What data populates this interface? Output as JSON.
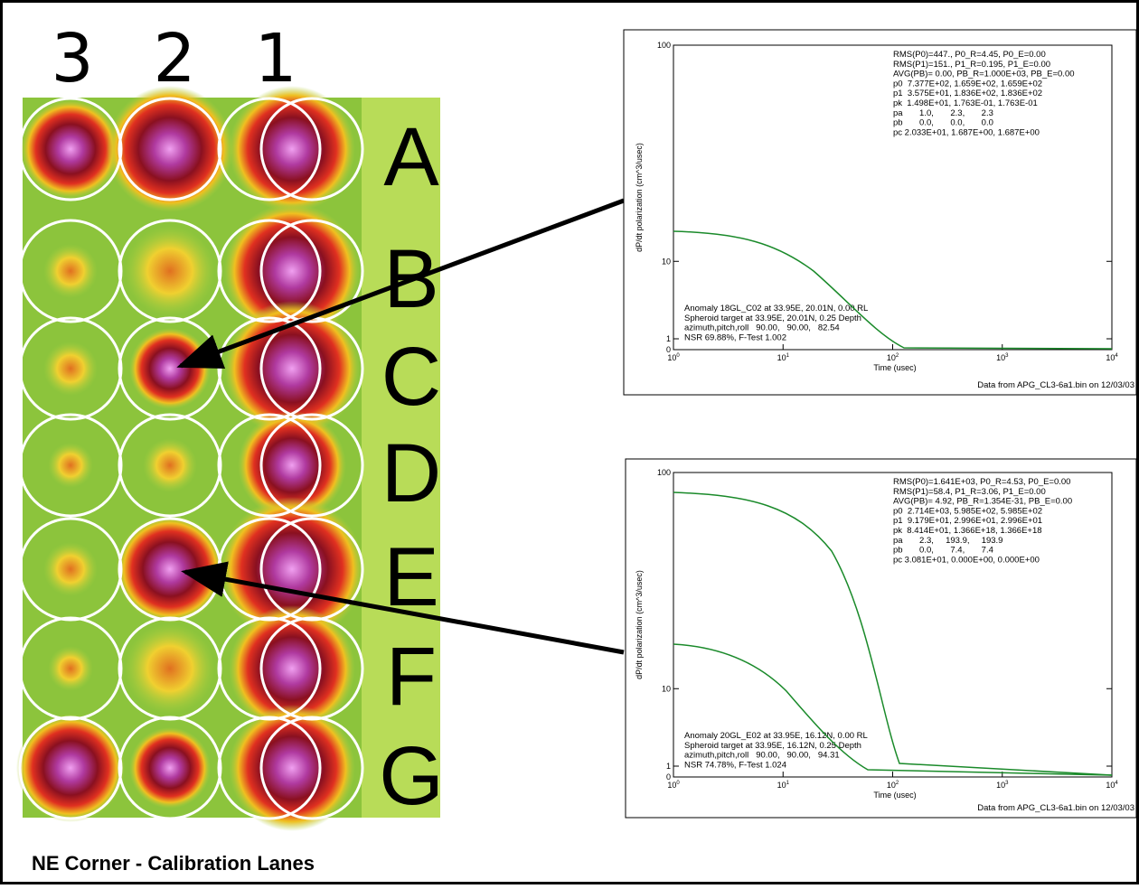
{
  "heatmap": {
    "column_labels": [
      "3",
      "2",
      "1"
    ],
    "row_labels": [
      "A",
      "B",
      "C",
      "D",
      "E",
      "F",
      "G"
    ]
  },
  "plots": [
    {
      "y_label": "dP/dt polarization (cm^3/usec)",
      "x_label": "Time (usec)",
      "y_tick_labels": [
        "100",
        "10",
        "1",
        "0"
      ],
      "x_tick_labels": [
        {
          "base": "10",
          "exp": "0"
        },
        {
          "base": "10",
          "exp": "1"
        },
        {
          "base": "10",
          "exp": "2"
        },
        {
          "base": "10",
          "exp": "3"
        },
        {
          "base": "10",
          "exp": "4"
        }
      ],
      "fit_lines": [
        "RMS(P0)=447., P0_R=4.45, P0_E=0.00",
        "RMS(P1)=151., P1_R=0.195, P1_E=0.00",
        "AVG(PB)= 0.00, PB_R=1.000E+03, PB_E=0.00",
        "p0  7.377E+02, 1.659E+02, 1.659E+02",
        "p1  3.575E+01, 1.836E+02, 1.836E+02",
        "pk  1.498E+01, 1.763E-01, 1.763E-01",
        "pa       1.0,       2.3,       2.3",
        "pb       0.0,       0.0,       0.0",
        "pc 2.033E+01, 1.687E+00, 1.687E+00"
      ],
      "anomaly_lines": [
        "Anomaly 18GL_C02 at 33.95E, 20.01N, 0.00 RL",
        "Spheroid target at 33.95E, 20.01N, 0.25 Depth",
        "azimuth,pitch,roll   90.00,   90.00,   82.54",
        "NSR 69.88%, F-Test 1.002"
      ],
      "source": "Data from APG_CL3-6a1.bin on 12/03/03"
    },
    {
      "y_label": "dP/dt polarization (cm^3/usec)",
      "x_label": "Time (usec)",
      "y_tick_labels": [
        "100",
        "10",
        "1",
        "0"
      ],
      "x_tick_labels": [
        {
          "base": "10",
          "exp": "0"
        },
        {
          "base": "10",
          "exp": "1"
        },
        {
          "base": "10",
          "exp": "2"
        },
        {
          "base": "10",
          "exp": "3"
        },
        {
          "base": "10",
          "exp": "4"
        }
      ],
      "fit_lines": [
        "RMS(P0)=1.641E+03, P0_R=4.53, P0_E=0.00",
        "RMS(P1)=58.4, P1_R=3.06, P1_E=0.00",
        "AVG(PB)= 4.92, PB_R=1.354E-31, PB_E=0.00",
        "p0  2.714E+03, 5.985E+02, 5.985E+02",
        "p1  9.179E+01, 2.996E+01, 2.996E+01",
        "pk  8.414E+01, 1.366E+18, 1.366E+18",
        "pa       2.3,     193.9,     193.9",
        "pb       0.0,       7.4,       7.4",
        "pc 3.081E+01, 0.000E+00, 0.000E+00"
      ],
      "anomaly_lines": [
        "Anomaly 20GL_E02 at 33.95E, 16.12N, 0.00 RL",
        "Spheroid target at 33.95E, 16.12N, 0.25 Depth",
        "azimuth,pitch,roll   90.00,   90.00,   94.31",
        "NSR 74.78%, F-Test 1.024"
      ],
      "source": "Data from APG_CL3-6a1.bin on 12/03/03"
    }
  ],
  "caption": "NE Corner - Calibration Lanes"
}
